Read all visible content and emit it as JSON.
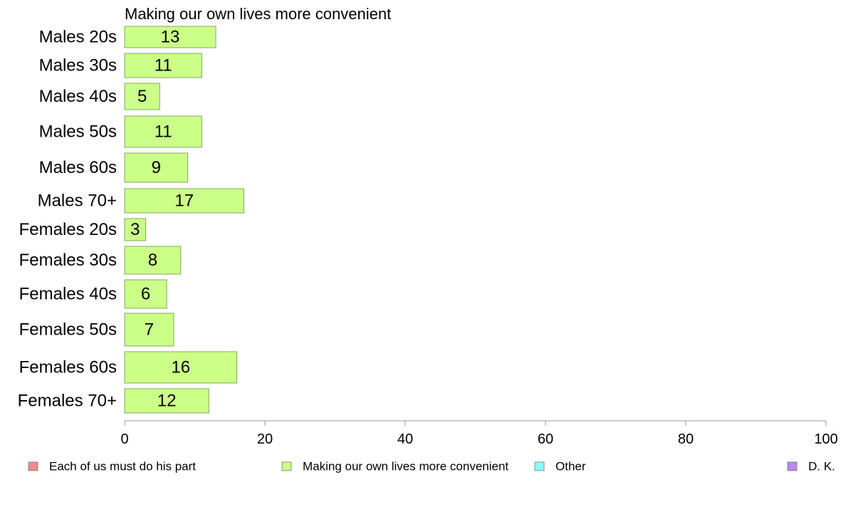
{
  "chart_data": {
    "type": "bar",
    "orientation": "horizontal",
    "title": "Making our own lives more convenient",
    "categories": [
      "Males 20s",
      "Males 30s",
      "Males 40s",
      "Males 50s",
      "Males 60s",
      "Males 70+",
      "Females 20s",
      "Females 30s",
      "Females 40s",
      "Females 50s",
      "Females 60s",
      "Females 70+"
    ],
    "series": [
      {
        "name": "Making our own lives more convenient",
        "values": [
          13,
          11,
          5,
          11,
          9,
          17,
          3,
          8,
          6,
          7,
          16,
          12
        ],
        "color": "#ccff88"
      }
    ],
    "xlim": [
      0,
      100
    ],
    "xticks": [
      0,
      20,
      40,
      60,
      80,
      100
    ],
    "legend_position": "bottom",
    "legend": [
      {
        "label": "Each of us must do his part",
        "color": "#f08c8c"
      },
      {
        "label": "Making our own lives more convenient",
        "color": "#ccff88"
      },
      {
        "label": "Other",
        "color": "#88ffff"
      },
      {
        "label": "D. K.",
        "color": "#bb88ee"
      }
    ]
  }
}
